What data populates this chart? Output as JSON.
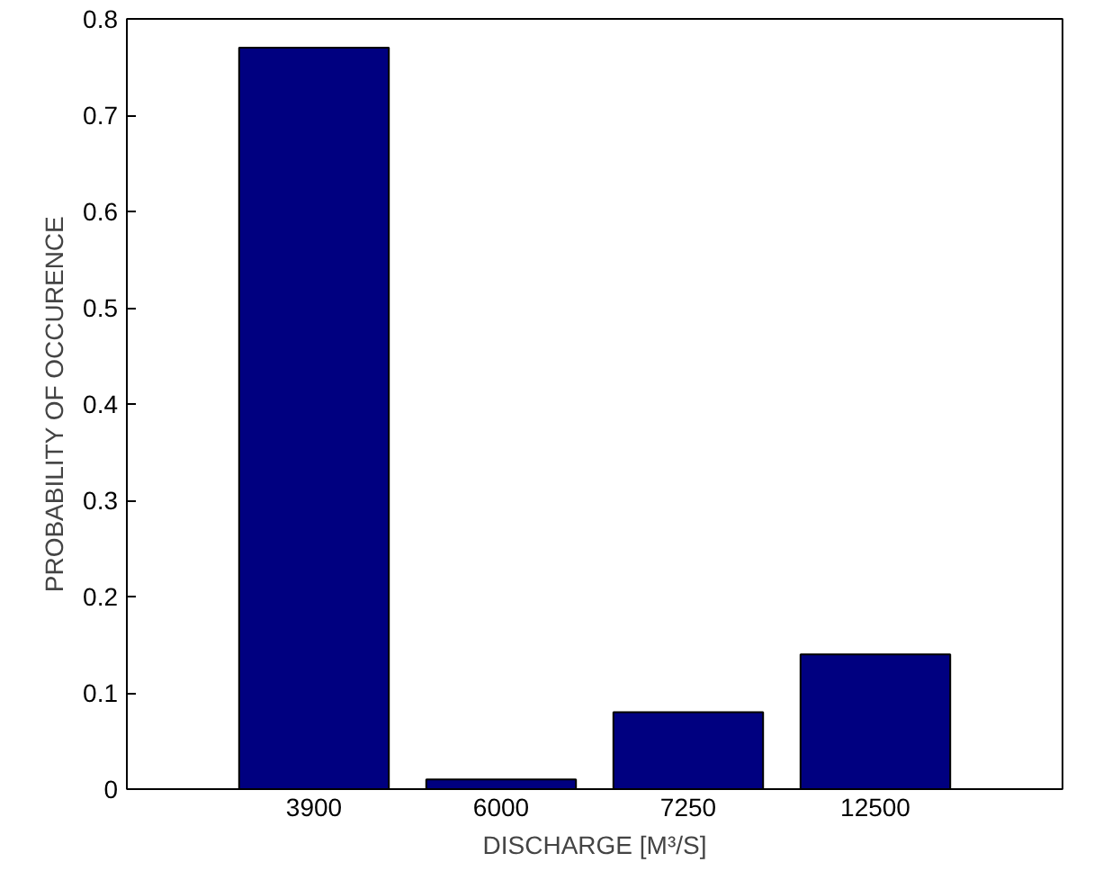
{
  "chart_data": {
    "type": "bar",
    "xlabel": "DISCHARGE [M³/S]",
    "ylabel": "PROBABILITY OF OCCURENCE",
    "categories": [
      "3900",
      "6000",
      "7250",
      "12500"
    ],
    "values": [
      0.77,
      0.01,
      0.08,
      0.14
    ],
    "color": "#000080",
    "ylim": [
      0,
      0.8
    ],
    "yticks": [
      0,
      0.1,
      0.2,
      0.3,
      0.4,
      0.5,
      0.6,
      0.7,
      0.8
    ],
    "grid": false
  }
}
